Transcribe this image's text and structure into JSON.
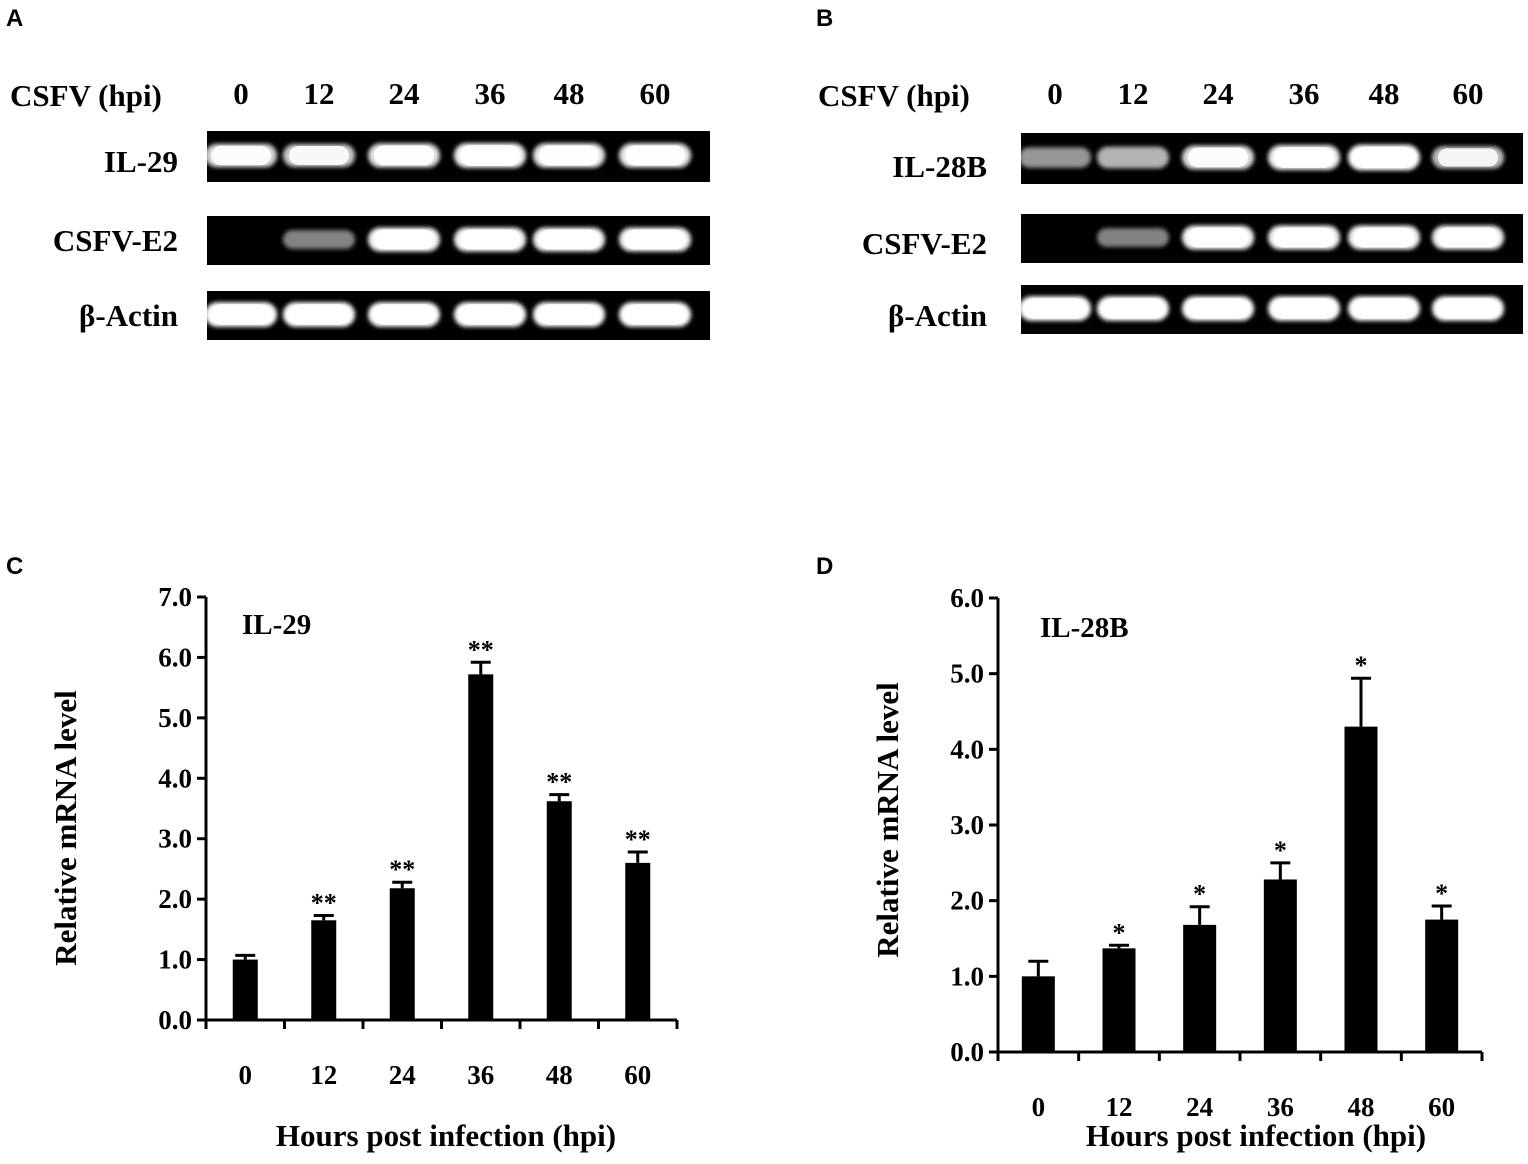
{
  "panels": {
    "A": {
      "letter": "A",
      "header_label": "CSFV (hpi)",
      "lanes": [
        "0",
        "12",
        "24",
        "36",
        "48",
        "60"
      ],
      "rows": [
        {
          "label": "IL-29",
          "intensity": [
            0.78,
            0.72,
            0.85,
            0.92,
            0.88,
            0.88
          ]
        },
        {
          "label": "CSFV-E2",
          "intensity": [
            0.0,
            0.35,
            0.95,
            0.95,
            0.95,
            0.95
          ]
        },
        {
          "label": "β-Actin",
          "intensity": [
            1.0,
            1.0,
            1.0,
            1.0,
            1.0,
            1.0
          ]
        }
      ]
    },
    "B": {
      "letter": "B",
      "header_label": "CSFV (hpi)",
      "lanes": [
        "0",
        "12",
        "24",
        "36",
        "48",
        "60"
      ],
      "rows": [
        {
          "label": "IL-28B",
          "intensity": [
            0.45,
            0.6,
            0.82,
            0.92,
            1.0,
            0.65
          ]
        },
        {
          "label": "CSFV-E2",
          "intensity": [
            0.0,
            0.35,
            0.95,
            0.95,
            0.95,
            0.95
          ]
        },
        {
          "label": "β-Actin",
          "intensity": [
            1.0,
            1.0,
            1.0,
            1.0,
            1.0,
            1.0
          ]
        }
      ]
    },
    "C": {
      "letter": "C"
    },
    "D": {
      "letter": "D"
    }
  },
  "colors": {
    "bar": "#000000",
    "gel_bg": "#000000",
    "band": "#ffffff"
  },
  "chart_data": [
    {
      "type": "bar",
      "title": "IL-29",
      "xlabel": "Hours post infection (hpi)",
      "ylabel": "Relative mRNA level",
      "categories": [
        "0",
        "12",
        "24",
        "36",
        "48",
        "60"
      ],
      "values": [
        1.0,
        1.65,
        2.18,
        5.72,
        3.62,
        2.6
      ],
      "errors": [
        0.07,
        0.08,
        0.1,
        0.2,
        0.11,
        0.18
      ],
      "significance": [
        "",
        "**",
        "**",
        "**",
        "**",
        "**"
      ],
      "ylim": [
        0,
        7
      ],
      "yticks": [
        "0.0",
        "1.0",
        "2.0",
        "3.0",
        "4.0",
        "5.0",
        "6.0",
        "7.0"
      ],
      "grid": false
    },
    {
      "type": "bar",
      "title": "IL-28B",
      "xlabel": "Hours post infection (hpi)",
      "ylabel": "Relative mRNA level",
      "categories": [
        "0",
        "12",
        "24",
        "36",
        "48",
        "60"
      ],
      "values": [
        1.0,
        1.37,
        1.68,
        2.28,
        4.3,
        1.75
      ],
      "errors": [
        0.2,
        0.04,
        0.24,
        0.22,
        0.64,
        0.18
      ],
      "significance": [
        "",
        "*",
        "*",
        "*",
        "*",
        "*"
      ],
      "ylim": [
        0,
        6
      ],
      "yticks": [
        "0.0",
        "1.0",
        "2.0",
        "3.0",
        "4.0",
        "5.0",
        "6.0"
      ],
      "grid": false
    }
  ]
}
